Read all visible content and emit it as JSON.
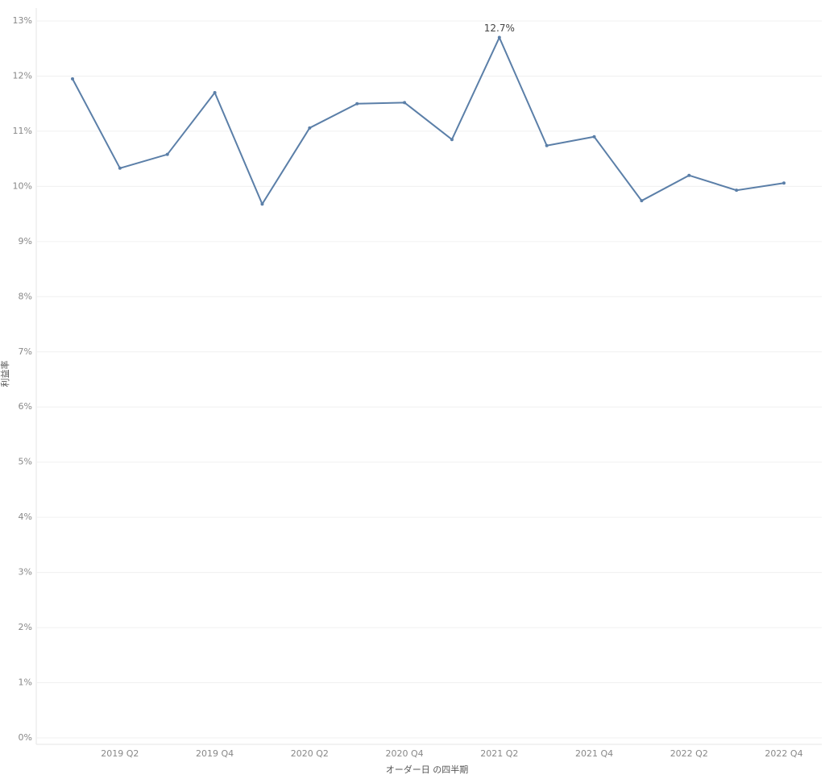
{
  "chart_data": {
    "type": "line",
    "x_label": "オーダー日 の四半期",
    "y_label": "利益率",
    "categories": [
      null,
      "2019 Q2",
      null,
      "2019 Q4",
      null,
      "2020 Q2",
      null,
      "2020 Q4",
      null,
      "2021 Q2",
      null,
      "2021 Q4",
      null,
      "2022 Q2",
      null,
      "2022 Q4"
    ],
    "series": [
      {
        "name": "利益率",
        "color": "#5b7fa8",
        "values": [
          11.95,
          10.33,
          10.58,
          11.7,
          9.68,
          11.06,
          11.5,
          11.52,
          10.85,
          12.7,
          10.74,
          10.9,
          9.74,
          10.2,
          9.93,
          10.06
        ],
        "value_labels": [
          null,
          null,
          null,
          null,
          null,
          null,
          null,
          null,
          null,
          "12.7%",
          null,
          null,
          null,
          null,
          null,
          null
        ]
      }
    ],
    "ylim": [
      0,
      13
    ],
    "yticks": [
      {
        "value": 0,
        "label": "0%"
      },
      {
        "value": 1,
        "label": "1%"
      },
      {
        "value": 2,
        "label": "2%"
      },
      {
        "value": 3,
        "label": "3%"
      },
      {
        "value": 4,
        "label": "4%"
      },
      {
        "value": 5,
        "label": "5%"
      },
      {
        "value": 6,
        "label": "6%"
      },
      {
        "value": 7,
        "label": "7%"
      },
      {
        "value": 8,
        "label": "8%"
      },
      {
        "value": 9,
        "label": "9%"
      },
      {
        "value": 10,
        "label": "10%"
      },
      {
        "value": 11,
        "label": "11%"
      },
      {
        "value": 12,
        "label": "12%"
      },
      {
        "value": 13,
        "label": "13%"
      }
    ],
    "grid": true
  }
}
